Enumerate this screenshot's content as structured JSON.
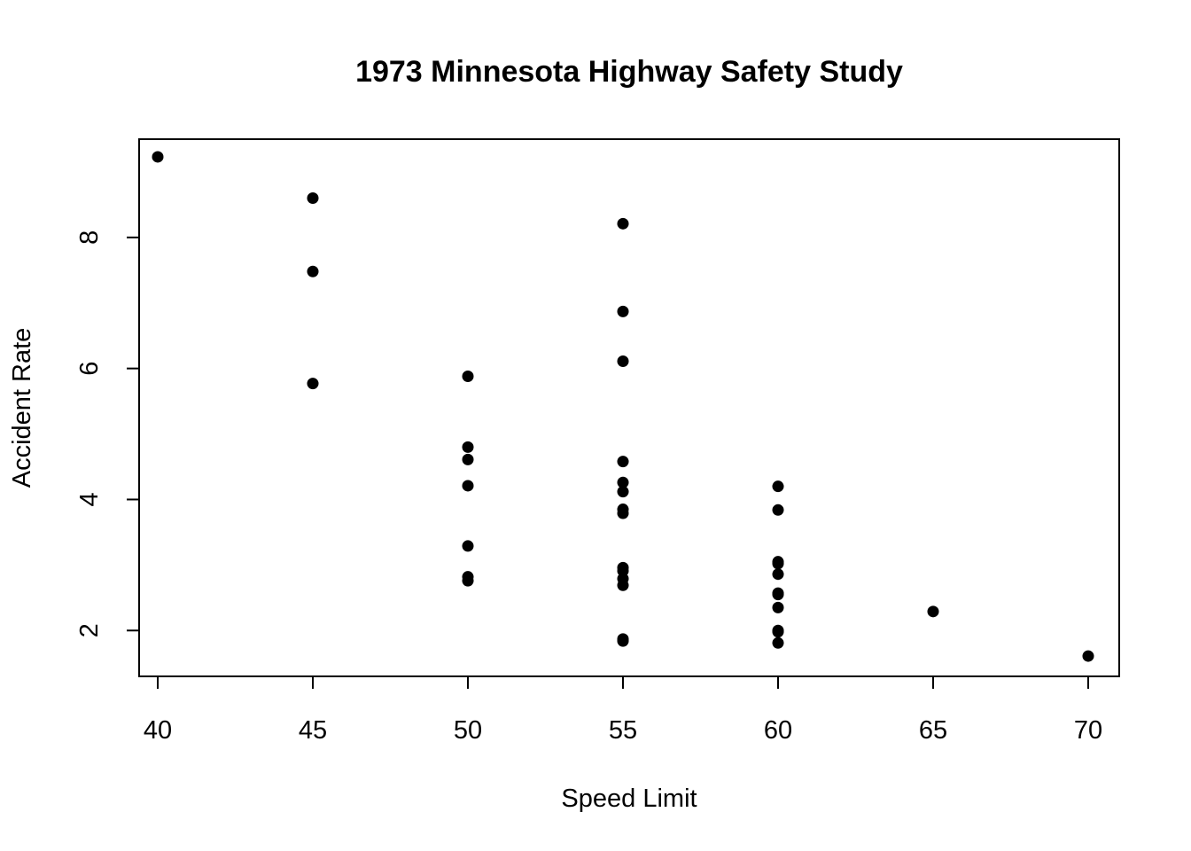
{
  "chart_data": {
    "type": "scatter",
    "title": "1973 Minnesota Highway Safety Study",
    "xlabel": "Speed Limit",
    "ylabel": "Accident Rate",
    "xlim": [
      39.4,
      71.0
    ],
    "ylim": [
      1.3,
      9.5
    ],
    "xticks": [
      40,
      45,
      50,
      55,
      60,
      65,
      70
    ],
    "yticks": [
      2,
      4,
      6,
      8
    ],
    "grid": false,
    "marker_color": "#000000",
    "points": [
      {
        "x": 40,
        "y": 9.23
      },
      {
        "x": 45,
        "y": 8.6
      },
      {
        "x": 45,
        "y": 7.48
      },
      {
        "x": 45,
        "y": 5.77
      },
      {
        "x": 50,
        "y": 5.88
      },
      {
        "x": 50,
        "y": 4.8
      },
      {
        "x": 50,
        "y": 4.61
      },
      {
        "x": 50,
        "y": 4.21
      },
      {
        "x": 50,
        "y": 3.29
      },
      {
        "x": 50,
        "y": 2.82
      },
      {
        "x": 50,
        "y": 2.76
      },
      {
        "x": 55,
        "y": 8.21
      },
      {
        "x": 55,
        "y": 6.87
      },
      {
        "x": 55,
        "y": 6.11
      },
      {
        "x": 55,
        "y": 4.58
      },
      {
        "x": 55,
        "y": 4.26
      },
      {
        "x": 55,
        "y": 4.12
      },
      {
        "x": 55,
        "y": 3.85
      },
      {
        "x": 55,
        "y": 3.79
      },
      {
        "x": 55,
        "y": 2.96
      },
      {
        "x": 55,
        "y": 2.91
      },
      {
        "x": 55,
        "y": 2.79
      },
      {
        "x": 55,
        "y": 2.69
      },
      {
        "x": 55,
        "y": 1.87
      },
      {
        "x": 55,
        "y": 1.84
      },
      {
        "x": 60,
        "y": 4.2
      },
      {
        "x": 60,
        "y": 3.84
      },
      {
        "x": 60,
        "y": 3.05
      },
      {
        "x": 60,
        "y": 3.02
      },
      {
        "x": 60,
        "y": 2.86
      },
      {
        "x": 60,
        "y": 2.57
      },
      {
        "x": 60,
        "y": 2.55
      },
      {
        "x": 60,
        "y": 2.35
      },
      {
        "x": 60,
        "y": 2.0
      },
      {
        "x": 60,
        "y": 1.98
      },
      {
        "x": 60,
        "y": 1.81
      },
      {
        "x": 65,
        "y": 2.29
      },
      {
        "x": 70,
        "y": 1.61
      }
    ]
  }
}
